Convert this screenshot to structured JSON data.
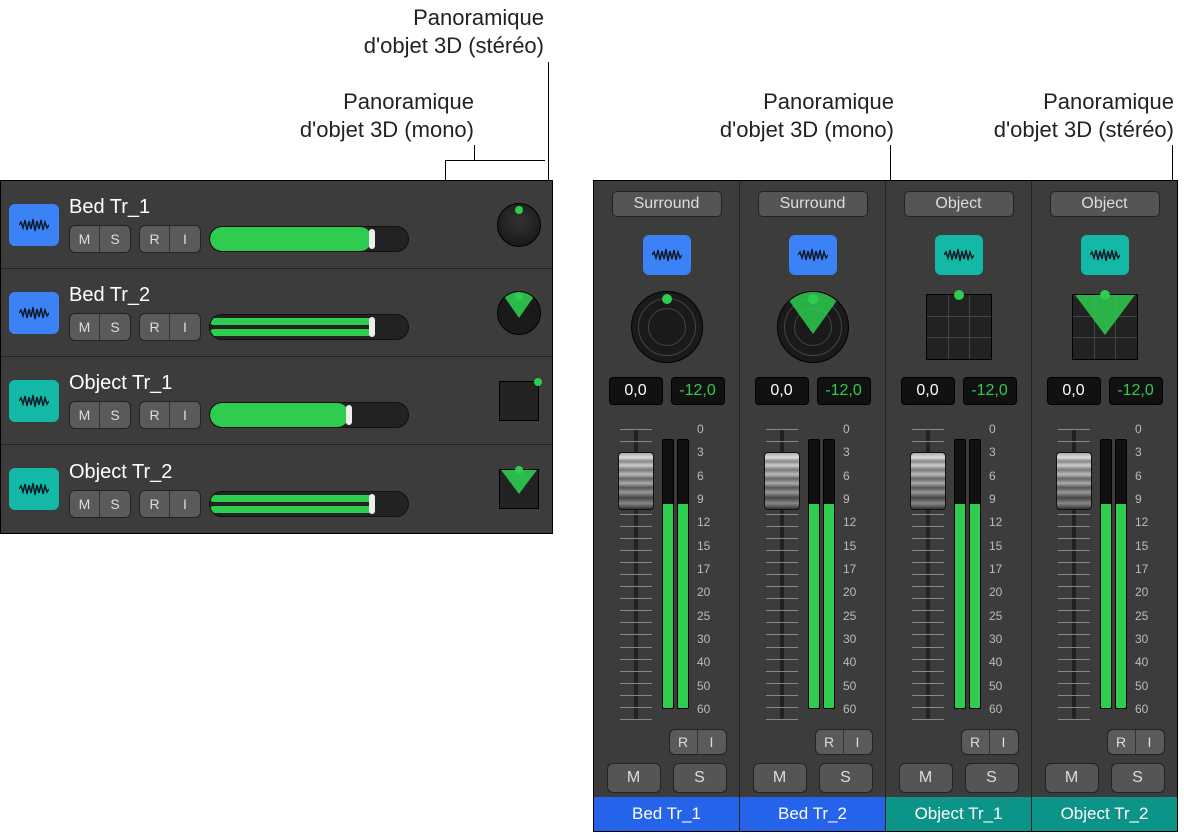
{
  "callouts": {
    "left_stereo": "Panoramique\nd'objet 3D (stéréo)",
    "left_mono": "Panoramique\nd'objet 3D (mono)",
    "right_mono": "Panoramique\nd'objet 3D (mono)",
    "right_stereo": "Panoramique\nd'objet 3D (stéréo)"
  },
  "colors": {
    "panel_bg": "#3c3c3c",
    "accent_green": "#2ecc4f",
    "blue": "#3b82f6",
    "teal": "#14b8a6",
    "strip_blue": "#2563eb",
    "strip_teal": "#0d9488"
  },
  "track_buttons": {
    "mute": "M",
    "solo": "S",
    "record": "R",
    "input": "I"
  },
  "tracks": [
    {
      "name": "Bed Tr_1",
      "color": "blue",
      "stereo": false,
      "vol_pct": 82,
      "pan_type": "knob"
    },
    {
      "name": "Bed Tr_2",
      "color": "blue",
      "stereo": true,
      "vol_pct": 82,
      "pan_type": "surround"
    },
    {
      "name": "Object Tr_1",
      "color": "teal",
      "stereo": false,
      "vol_pct": 70,
      "pan_type": "object-mono"
    },
    {
      "name": "Object Tr_2",
      "color": "teal",
      "stereo": true,
      "vol_pct": 82,
      "pan_type": "object-stereo"
    }
  ],
  "mixer_mode": {
    "surround": "Surround",
    "object": "Object"
  },
  "readout": {
    "pan": "0,0",
    "gain": "-12,0"
  },
  "fader": {
    "scale_labels": [
      "0",
      "3",
      "6",
      "9",
      "12",
      "15",
      "17",
      "20",
      "25",
      "30",
      "40",
      "50",
      "60"
    ],
    "cap_pos_pct": 8,
    "meter_fill_pct": 76
  },
  "strips": [
    {
      "name": "Bed Tr_1",
      "color": "blue",
      "mode": "surround",
      "pan": "circle-mono"
    },
    {
      "name": "Bed Tr_2",
      "color": "blue",
      "mode": "surround",
      "pan": "circle-stereo"
    },
    {
      "name": "Object Tr_1",
      "color": "teal",
      "mode": "object",
      "pan": "square-mono"
    },
    {
      "name": "Object Tr_2",
      "color": "teal",
      "mode": "object",
      "pan": "square-stereo"
    }
  ]
}
